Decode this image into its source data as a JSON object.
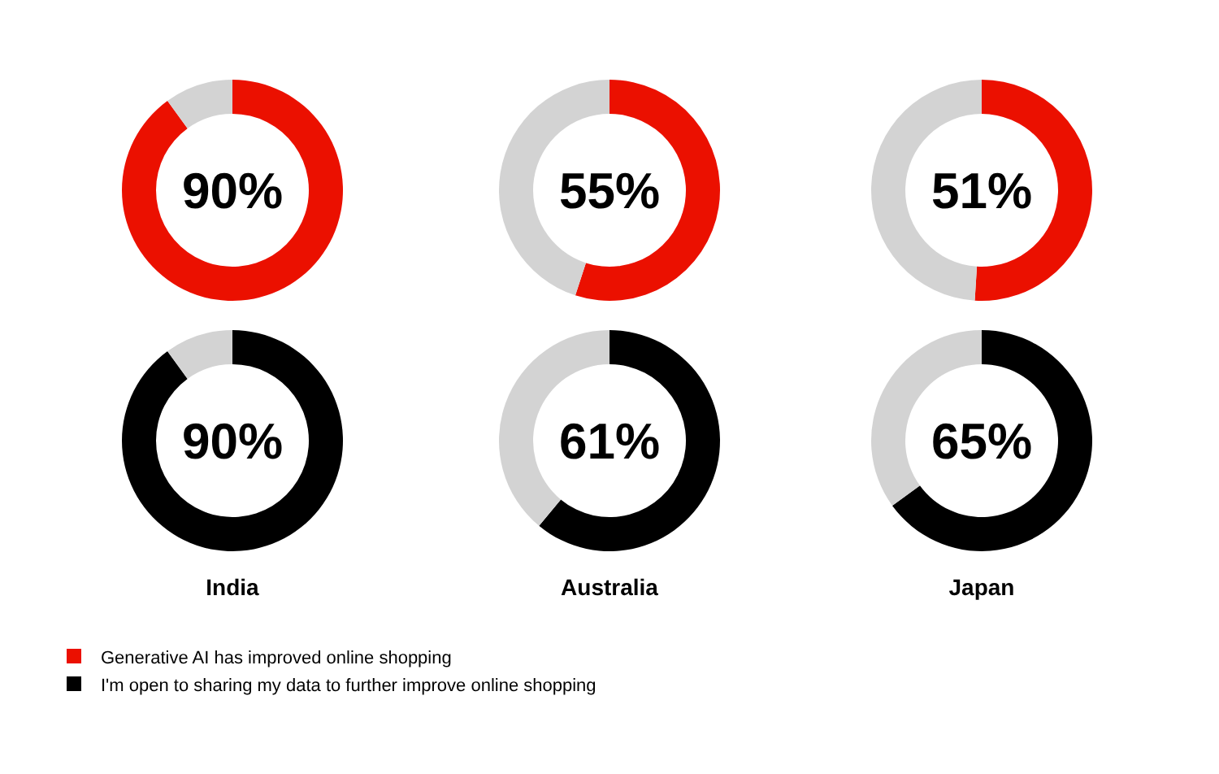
{
  "chart_data": [
    {
      "type": "donut",
      "categories": [
        "Generative AI has improved online shopping",
        null
      ],
      "values": [
        90,
        10
      ],
      "colors": [
        "#eb1000",
        "#d3d3d3"
      ],
      "value_labels": [
        "90%",
        null
      ],
      "legend": "bottom right"
    },
    {
      "type": "donut",
      "categories": [
        null,
        null
      ],
      "values": [
        55,
        45
      ],
      "colors": [
        "#eb1000",
        "#d3d3d3"
      ],
      "value_labels": [
        "55%",
        null
      ]
    },
    {
      "type": "donut",
      "categories": [
        null,
        null
      ],
      "values": [
        51,
        49
      ],
      "colors": [
        "#eb1000",
        "#d3d3d3"
      ],
      "value_labels": [
        "51%",
        null
      ]
    },
    {
      "type": "donut",
      "categories": [
        "I'm open to sharing my data to further improve online shopping",
        null
      ],
      "values": [
        90,
        10
      ],
      "colors": [
        "#000000",
        "#d3d3d3"
      ],
      "value_labels": [
        "90%",
        null
      ],
      "xlabel": "India",
      "legend": "bottom right"
    },
    {
      "type": "donut",
      "categories": [
        null,
        null
      ],
      "values": [
        61,
        39
      ],
      "colors": [
        "#000000",
        "#d3d3d3"
      ],
      "value_labels": [
        "61%",
        null
      ],
      "xlabel": "Australia"
    },
    {
      "type": "donut",
      "categories": [
        null,
        null
      ],
      "values": [
        65,
        35
      ],
      "colors": [
        "#000000",
        "#d3d3d3"
      ],
      "value_labels": [
        "65%",
        null
      ],
      "xlabel": "Japan"
    }
  ]
}
